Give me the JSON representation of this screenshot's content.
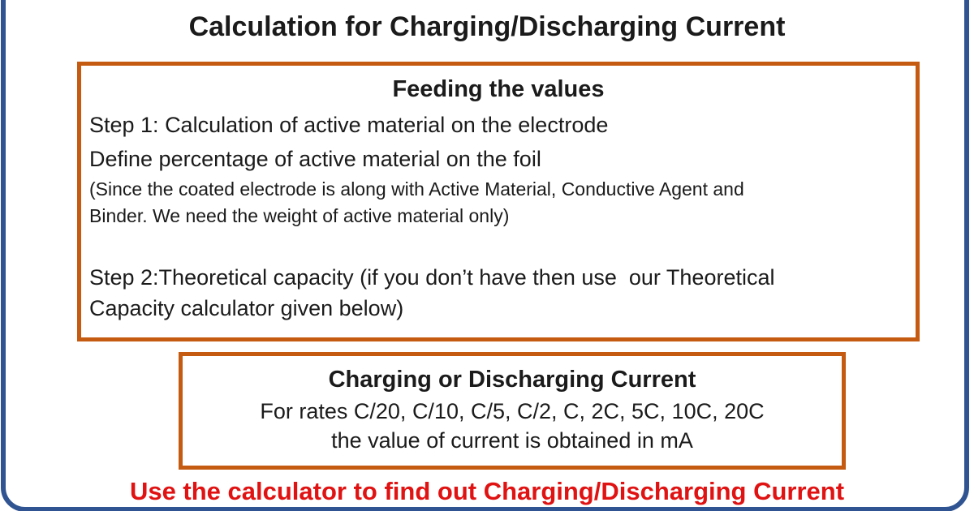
{
  "slide": {
    "title": "Calculation for Charging/Discharging Current",
    "box1": {
      "heading": "Feeding the values",
      "lines": [
        "Step 1: Calculation of active material on the electrode",
        "Define percentage of active material on the foil"
      ],
      "note_lines": [
        "(Since the coated electrode is along with Active Material, Conductive Agent and",
        "Binder. We need the weight of active material only)"
      ],
      "step2_lines": [
        "Step 2:Theoretical capacity (if you don’t have then use  our Theoretical",
        "Capacity calculator given below)"
      ]
    },
    "box2": {
      "heading": "Charging or Discharging Current",
      "lines": [
        "For rates C/20, C/10, C/5, C/2, C, 2C, 5C, 10C, 20C",
        "the value of current is obtained in mA"
      ]
    },
    "footer": "Use the calculator to find out Charging/Discharging Current",
    "colors": {
      "frame_blue": "#2f5491",
      "box_border_orange": "#c55a11",
      "footer_red": "#e01212",
      "text_black": "#1b1b1b"
    }
  }
}
